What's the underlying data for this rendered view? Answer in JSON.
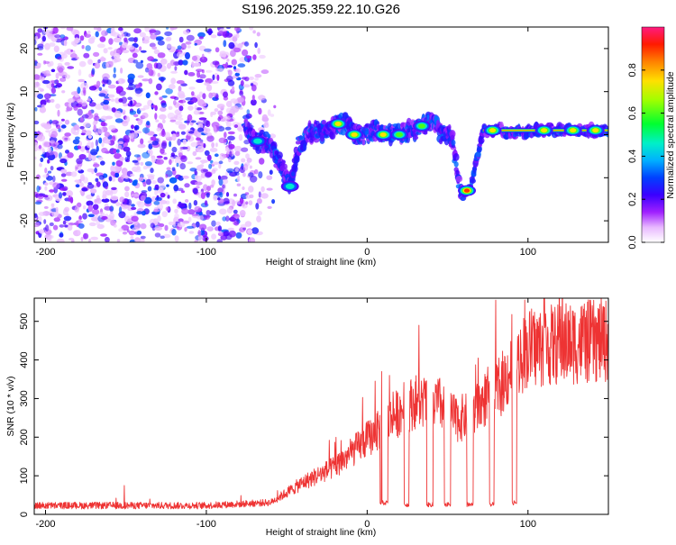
{
  "title": "S196.2025.359.22.10.G26",
  "chart_data": [
    {
      "type": "heatmap",
      "xlabel": "Height of straight line (km)",
      "ylabel": "Frequency (Hz)",
      "xlim": [
        -207,
        150
      ],
      "ylim": [
        -25,
        25
      ],
      "xticks": [
        -200,
        -100,
        0,
        100
      ],
      "yticks": [
        -20,
        -10,
        0,
        10,
        20
      ],
      "colorbar": {
        "label": "Normalized spectral amplitude",
        "range": [
          0,
          1
        ],
        "ticks": [
          0.0,
          0.2,
          0.4,
          0.6,
          0.8
        ],
        "tick_labels": [
          "0.0",
          "0.2",
          "0.4",
          "0.6",
          "0.8"
        ],
        "colors": [
          "#ffffff",
          "#d070ff",
          "#7b00ff",
          "#0033ff",
          "#00c8ff",
          "#00ff66",
          "#c8ff00",
          "#ffaa00",
          "#ff2a00",
          "#ff1a80"
        ]
      },
      "noise_region": {
        "x_range": [
          -207,
          -55
        ],
        "f_range": [
          -25,
          25
        ],
        "amplitude": [
          0.05,
          0.25
        ]
      },
      "ridge": [
        {
          "x": -76,
          "f": 2
        },
        {
          "x": -72,
          "f": -0.5
        },
        {
          "x": -68,
          "f": -1.5
        },
        {
          "x": -62,
          "f": -1.5
        },
        {
          "x": -58,
          "f": -4
        },
        {
          "x": -52,
          "f": -8
        },
        {
          "x": -48,
          "f": -12
        },
        {
          "x": -42,
          "f": -2
        },
        {
          "x": -36,
          "f": 0.5
        },
        {
          "x": -30,
          "f": 1
        },
        {
          "x": -24,
          "f": 1
        },
        {
          "x": -18,
          "f": 2.5
        },
        {
          "x": -12,
          "f": 2.5
        },
        {
          "x": -6,
          "f": 0
        },
        {
          "x": 0,
          "f": 0
        },
        {
          "x": 4,
          "f": 1
        },
        {
          "x": 10,
          "f": 0
        },
        {
          "x": 16,
          "f": 0.5
        },
        {
          "x": 22,
          "f": 0.5
        },
        {
          "x": 28,
          "f": 1
        },
        {
          "x": 34,
          "f": 2
        },
        {
          "x": 40,
          "f": 3.5
        },
        {
          "x": 46,
          "f": 0.5
        },
        {
          "x": 52,
          "f": 0.5
        },
        {
          "x": 58,
          "f": -13
        },
        {
          "x": 64,
          "f": -13
        },
        {
          "x": 72,
          "f": 1
        },
        {
          "x": 80,
          "f": 1
        },
        {
          "x": 88,
          "f": 0.5
        },
        {
          "x": 96,
          "f": 0.5
        },
        {
          "x": 104,
          "f": 1
        },
        {
          "x": 115,
          "f": 1
        },
        {
          "x": 125,
          "f": 1
        },
        {
          "x": 137,
          "f": 1
        },
        {
          "x": 150,
          "f": 1
        }
      ],
      "hotspots": [
        {
          "x": -68,
          "f": -1.5,
          "a": 0.55
        },
        {
          "x": -48,
          "f": -12,
          "a": 0.45
        },
        {
          "x": -18,
          "f": 2.5,
          "a": 0.85
        },
        {
          "x": -8,
          "f": 0,
          "a": 0.8
        },
        {
          "x": 10,
          "f": 0,
          "a": 0.85
        },
        {
          "x": 20,
          "f": 0,
          "a": 0.7
        },
        {
          "x": 34,
          "f": 2,
          "a": 0.6
        },
        {
          "x": 62,
          "f": -13,
          "a": 0.95
        },
        {
          "x": 78,
          "f": 1,
          "a": 0.8
        },
        {
          "x": 110,
          "f": 1,
          "a": 0.75
        },
        {
          "x": 128,
          "f": 1,
          "a": 0.85
        },
        {
          "x": 142,
          "f": 1,
          "a": 0.85
        }
      ]
    },
    {
      "type": "line",
      "xlabel": "Height of straight line (km)",
      "ylabel": "SNR (10 * v/v)",
      "xlim": [
        -207,
        150
      ],
      "ylim": [
        0,
        560
      ],
      "xticks": [
        -200,
        -100,
        0,
        100
      ],
      "yticks": [
        0,
        100,
        200,
        300,
        400,
        500
      ],
      "line_color": "#ee3333",
      "trend": [
        {
          "x": -207,
          "y": 22
        },
        {
          "x": -150,
          "y": 22
        },
        {
          "x": -100,
          "y": 22
        },
        {
          "x": -60,
          "y": 30
        },
        {
          "x": -40,
          "y": 80
        },
        {
          "x": -20,
          "y": 120
        },
        {
          "x": 0,
          "y": 190
        },
        {
          "x": 10,
          "y": 220
        },
        {
          "x": 20,
          "y": 260
        },
        {
          "x": 30,
          "y": 285
        },
        {
          "x": 45,
          "y": 280
        },
        {
          "x": 55,
          "y": 240
        },
        {
          "x": 65,
          "y": 250
        },
        {
          "x": 75,
          "y": 300
        },
        {
          "x": 82,
          "y": 320
        },
        {
          "x": 90,
          "y": 370
        },
        {
          "x": 100,
          "y": 420
        },
        {
          "x": 120,
          "y": 430
        },
        {
          "x": 150,
          "y": 440
        }
      ],
      "dropouts": [
        {
          "x": [
            8,
            13
          ],
          "y": 30
        },
        {
          "x": [
            23,
            26
          ],
          "y": 25
        },
        {
          "x": [
            37,
            41
          ],
          "y": 25
        },
        {
          "x": [
            48,
            52
          ],
          "y": 25
        },
        {
          "x": [
            62,
            66
          ],
          "y": 25
        },
        {
          "x": [
            76,
            79
          ],
          "y": 25
        },
        {
          "x": [
            90,
            93
          ],
          "y": 30
        }
      ],
      "spikes": [
        {
          "x": -151,
          "y": 75
        },
        {
          "x": 5,
          "y": 345
        },
        {
          "x": 9,
          "y": 370
        },
        {
          "x": 14,
          "y": 360
        },
        {
          "x": 98,
          "y": 555
        },
        {
          "x": 135,
          "y": 545
        }
      ]
    }
  ]
}
